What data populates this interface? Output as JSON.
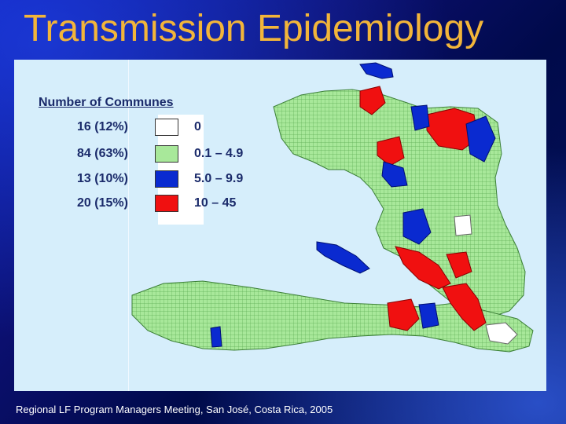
{
  "slide": {
    "title": "Transmission Epidemiology",
    "footer": "Regional LF Program Managers Meeting, San José, Costa Rica, 2005"
  },
  "legend": {
    "title": "Number of Communes",
    "rows": [
      {
        "count": "16 (12%)",
        "range": "0",
        "color": "#ffffff"
      },
      {
        "count": "84 (63%)",
        "range": "0.1 – 4.9",
        "color": "#a8e89a"
      },
      {
        "count": "13 (10%)",
        "range": "5.0 – 9.9",
        "color": "#0a2ad0"
      },
      {
        "count": "20 (15%)",
        "range": "10 – 45",
        "color": "#f01010"
      }
    ]
  },
  "colors": {
    "title": "#f2b53a",
    "panel": "#d6eefb",
    "land": "#a8e89a",
    "high": "#f01010",
    "mid": "#0a2ad0",
    "none": "#ffffff"
  }
}
